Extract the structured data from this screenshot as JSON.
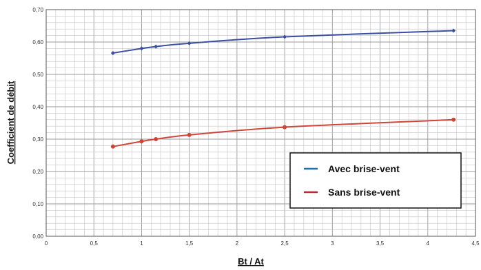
{
  "chart_data": {
    "type": "line",
    "title": "",
    "xlabel": "Bt / At",
    "ylabel": "Coefficient de débit",
    "xlim": [
      0,
      4.5
    ],
    "ylim": [
      0,
      0.7
    ],
    "x_ticks": [
      0,
      0.5,
      1,
      1.5,
      2,
      2.5,
      3,
      3.5,
      4,
      4.5
    ],
    "x_tick_labels": [
      "0",
      "0,5",
      "1",
      "1,5",
      "2",
      "2,5",
      "3",
      "3,5",
      "4",
      "4,5"
    ],
    "y_ticks": [
      0,
      0.1,
      0.2,
      0.3,
      0.4,
      0.5,
      0.6,
      0.7
    ],
    "y_tick_labels": [
      "0,00",
      "0,10",
      "0,20",
      "0,30",
      "0,40",
      "0,50",
      "0,60",
      "0,70"
    ],
    "grid": true,
    "legend_position": "bottom-right",
    "series": [
      {
        "name": "Avec brise-vent",
        "color": "#3b4fa0",
        "legend_color": "#1f6fa8",
        "points": [
          [
            0.7,
            0.566
          ],
          [
            1.0,
            0.58
          ],
          [
            1.15,
            0.586
          ],
          [
            1.5,
            0.596
          ],
          [
            2.5,
            0.616
          ],
          [
            4.27,
            0.635
          ]
        ]
      },
      {
        "name": "Sans brise-vent",
        "color": "#d0453a",
        "legend_color": "#c0282d",
        "points": [
          [
            0.7,
            0.277
          ],
          [
            1.0,
            0.293
          ],
          [
            1.15,
            0.3
          ],
          [
            1.5,
            0.313
          ],
          [
            2.5,
            0.337
          ],
          [
            4.27,
            0.36
          ]
        ]
      }
    ]
  }
}
